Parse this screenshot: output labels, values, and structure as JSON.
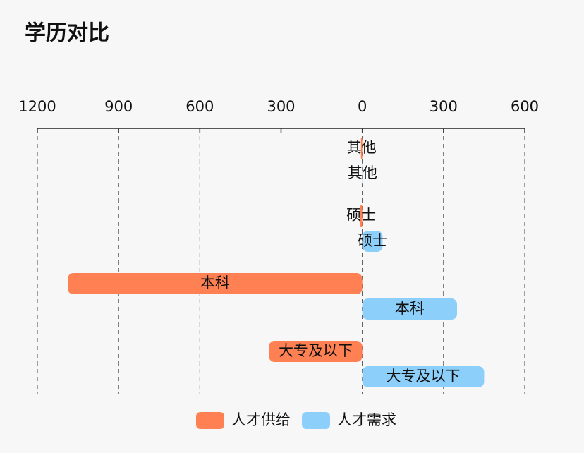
{
  "chart_data": {
    "type": "diverging-bar",
    "title": "学历对比",
    "categories": [
      "其他",
      "硕士",
      "本科",
      "大专及以下"
    ],
    "series": [
      {
        "name": "人才供给",
        "color": "#ff8153",
        "values": [
          -5,
          -8,
          -1088,
          -345
        ]
      },
      {
        "name": "人才需求",
        "color": "#8ccffa",
        "values": [
          1,
          75,
          350,
          450
        ]
      }
    ],
    "xlim": [
      -1200,
      600
    ],
    "xticks": [
      {
        "value": -1200,
        "label": "1200"
      },
      {
        "value": -900,
        "label": "900"
      },
      {
        "value": -600,
        "label": "600"
      },
      {
        "value": -300,
        "label": "300"
      },
      0,
      300,
      600
    ],
    "grid": true,
    "legend": "bottom"
  }
}
